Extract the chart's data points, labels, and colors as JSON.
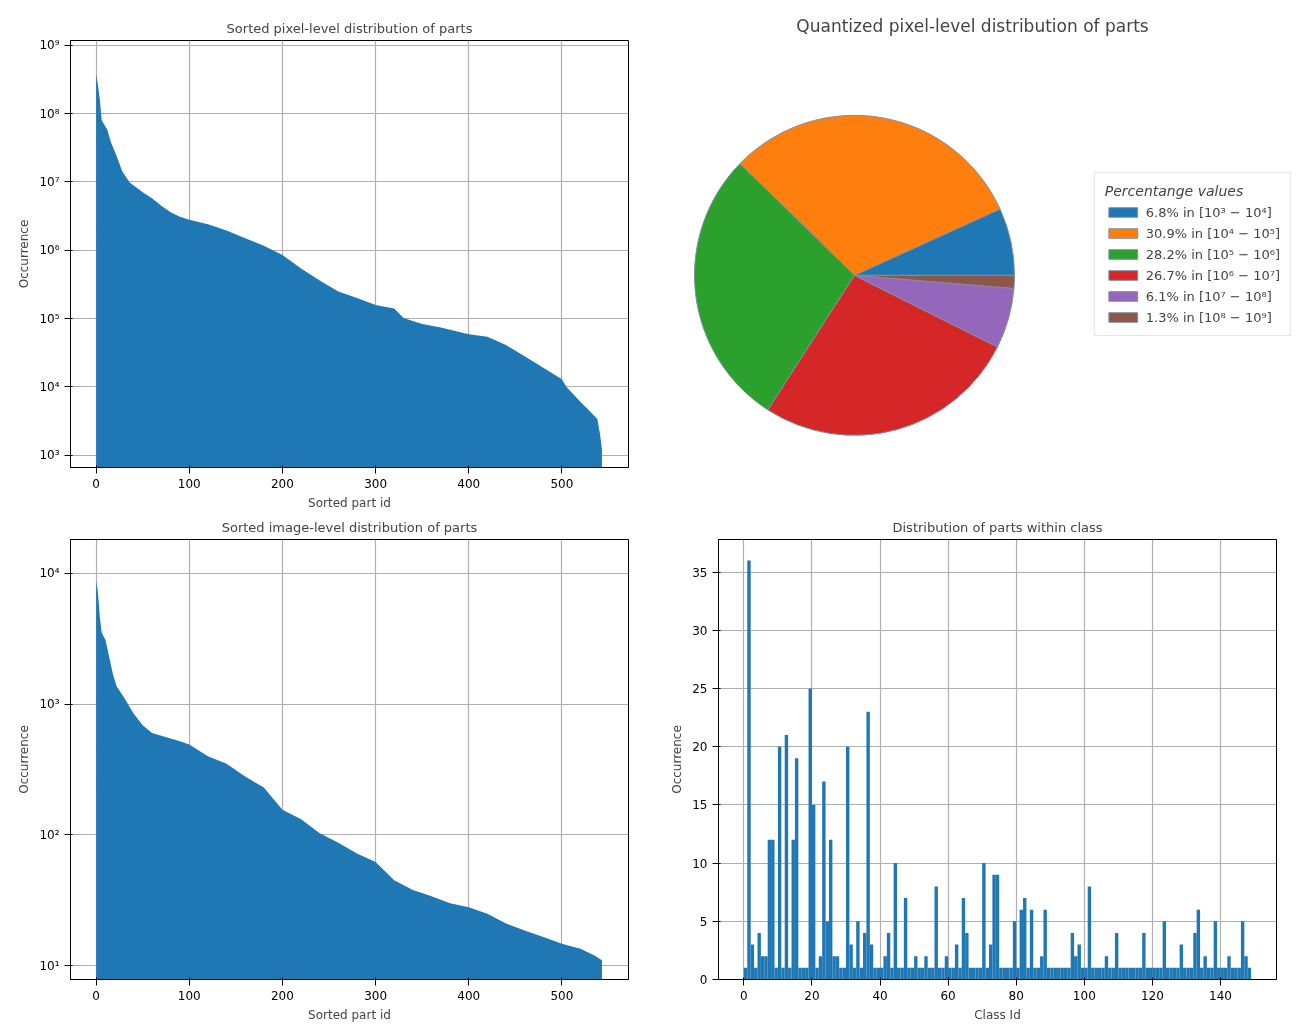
{
  "chart_data": [
    {
      "type": "area",
      "title": "Sorted pixel-level distribution of parts",
      "xlabel": "Sorted part id",
      "ylabel": "Occurrence",
      "log": "y",
      "grid": true,
      "x": [
        0,
        2,
        4,
        6,
        12,
        16,
        22,
        28,
        36,
        50,
        60,
        70,
        80,
        90,
        100,
        120,
        140,
        160,
        180,
        200,
        220,
        240,
        260,
        280,
        300,
        320,
        330,
        350,
        370,
        400,
        420,
        440,
        460,
        480,
        500,
        505,
        520,
        530,
        538,
        541,
        543
      ],
      "series": [
        {
          "color": "#1f77b4",
          "values": [
            380000000,
            260000000,
            160000000,
            80000000,
            58000000,
            38000000,
            24000000,
            14400000,
            9800000,
            7100000,
            5800000,
            4500000,
            3600000,
            3100000,
            2800000,
            2400000,
            1950000,
            1500000,
            1170000,
            850000,
            540000,
            360000,
            250000,
            200000,
            158000,
            140000,
            102000,
            83000,
            74000,
            59000,
            54000,
            41000,
            28000,
            19000,
            12900,
            10000,
            6000,
            4400,
            3400,
            2000,
            1200
          ]
        }
      ],
      "xlim": [
        -27.5,
        571.5
      ],
      "xticks": [
        0,
        100,
        200,
        300,
        400,
        500
      ],
      "ylim": [
        660,
        1180000000
      ],
      "yticks": [
        {
          "value": 1000,
          "label": "10³"
        },
        {
          "value": 10000,
          "label": "10⁴"
        },
        {
          "value": 100000,
          "label": "10⁵"
        },
        {
          "value": 1000000,
          "label": "10⁶"
        },
        {
          "value": 10000000,
          "label": "10⁷"
        },
        {
          "value": 100000000,
          "label": "10⁸"
        },
        {
          "value": 1000000000,
          "label": "10⁹"
        }
      ]
    },
    {
      "type": "pie",
      "title": "Quantized pixel-level distribution of parts",
      "legend_title": "Percentange values",
      "legend": "right",
      "categories": [
        "6.8% in [10³ − 10⁴]",
        "30.9% in [10⁴ − 10⁵]",
        "28.2% in [10⁵ − 10⁶]",
        "26.7% in [10⁶ − 10⁷]",
        "6.1% in [10⁷ − 10⁸]",
        "1.3% in [10⁸ − 10⁹]"
      ],
      "values": [
        6.8,
        30.9,
        28.2,
        26.7,
        6.1,
        1.3
      ],
      "colors": [
        "#1f77b4",
        "#ff7f0e",
        "#2ca02c",
        "#d62728",
        "#9467bd",
        "#8c564b"
      ]
    },
    {
      "type": "area",
      "title": "Sorted image-level distribution of parts",
      "xlabel": "Sorted part id",
      "ylabel": "Occurrence",
      "log": "y",
      "grid": true,
      "x": [
        0,
        2,
        4,
        6,
        10,
        14,
        18,
        22,
        30,
        40,
        50,
        60,
        90,
        100,
        120,
        140,
        160,
        180,
        200,
        220,
        240,
        260,
        280,
        300,
        320,
        340,
        360,
        380,
        400,
        420,
        440,
        460,
        480,
        500,
        520,
        535,
        543
      ],
      "series": [
        {
          "color": "#1f77b4",
          "values": [
            8800,
            7100,
            4600,
            3500,
            3100,
            2300,
            1700,
            1370,
            1120,
            850,
            690,
            600,
            520,
            490,
            400,
            350,
            280,
            230,
            156,
            132,
            103,
            87,
            72,
            62,
            45,
            38,
            34,
            30,
            28,
            25,
            21,
            18.6,
            16.6,
            14.7,
            13.5,
            12,
            11
          ]
        }
      ],
      "xlim": [
        -27.5,
        571.5
      ],
      "xticks": [
        0,
        100,
        200,
        300,
        400,
        500
      ],
      "ylim": [
        7.85,
        18100
      ],
      "yticks": [
        {
          "value": 10,
          "label": "10¹"
        },
        {
          "value": 100,
          "label": "10²"
        },
        {
          "value": 1000,
          "label": "10³"
        },
        {
          "value": 10000,
          "label": "10⁴"
        }
      ]
    },
    {
      "type": "histogram",
      "title": "Distribution of parts within class",
      "xlabel": "Class Id",
      "ylabel": "Occurrence",
      "grid": true,
      "color": "#1f77b4",
      "bins": [
        0,
        1,
        2,
        3,
        4,
        5,
        6,
        7,
        8,
        9,
        10,
        11,
        12,
        13,
        14,
        15,
        16,
        17,
        18,
        19,
        20,
        21,
        22,
        23,
        24,
        25,
        26,
        27,
        28,
        29,
        30,
        31,
        32,
        33,
        34,
        35,
        36,
        37,
        38,
        39,
        40,
        41,
        42,
        43,
        44,
        45,
        46,
        47,
        48,
        49,
        50,
        51,
        52,
        53,
        54,
        55,
        56,
        57,
        58,
        59,
        60,
        61,
        62,
        63,
        64,
        65,
        66,
        67,
        68,
        69,
        70,
        71,
        72,
        73,
        74,
        75,
        76,
        77,
        78,
        79,
        80,
        81,
        82,
        83,
        84,
        85,
        86,
        87,
        88,
        89,
        90,
        91,
        92,
        93,
        94,
        95,
        96,
        97,
        98,
        99,
        100,
        101,
        102,
        103,
        104,
        105,
        106,
        107,
        108,
        109,
        110,
        111,
        112,
        113,
        114,
        115,
        116,
        117,
        118,
        119,
        120,
        121,
        122,
        123,
        124,
        125,
        126,
        127,
        128,
        129,
        130,
        131,
        132,
        133,
        134,
        135,
        136,
        137,
        138,
        139,
        140,
        141,
        142,
        143,
        144,
        145,
        146,
        147,
        148,
        149
      ],
      "values": [
        1,
        36,
        3,
        1,
        4,
        2,
        2,
        12,
        12,
        1,
        20,
        1,
        21,
        1,
        12,
        19,
        1,
        1,
        1,
        25,
        15,
        1,
        2,
        17,
        5,
        12,
        2,
        2,
        1,
        1,
        20,
        3,
        1,
        5,
        1,
        4,
        23,
        3,
        1,
        1,
        1,
        2,
        4,
        1,
        10,
        1,
        1,
        7,
        1,
        1,
        2,
        1,
        1,
        2,
        1,
        1,
        8,
        1,
        1,
        2,
        1,
        1,
        3,
        1,
        7,
        4,
        1,
        1,
        1,
        1,
        10,
        1,
        3,
        9,
        9,
        1,
        1,
        1,
        1,
        5,
        1,
        6,
        7,
        1,
        6,
        1,
        1,
        2,
        6,
        1,
        1,
        1,
        1,
        1,
        1,
        1,
        4,
        2,
        3,
        1,
        1,
        8,
        1,
        1,
        1,
        1,
        2,
        1,
        1,
        4,
        1,
        1,
        1,
        1,
        1,
        1,
        1,
        4,
        1,
        1,
        1,
        1,
        1,
        5,
        1,
        1,
        1,
        1,
        3,
        1,
        1,
        1,
        4,
        6,
        1,
        2,
        1,
        1,
        5,
        1,
        1,
        1,
        2,
        1,
        1,
        1,
        5,
        2,
        1
      ],
      "xlim": [
        -7.45,
        156.45
      ],
      "xticks": [
        0,
        20,
        40,
        60,
        80,
        100,
        120,
        140
      ],
      "ylim": [
        0,
        37.8
      ],
      "yticks": [
        0,
        5,
        10,
        15,
        20,
        25,
        30,
        35
      ]
    }
  ]
}
